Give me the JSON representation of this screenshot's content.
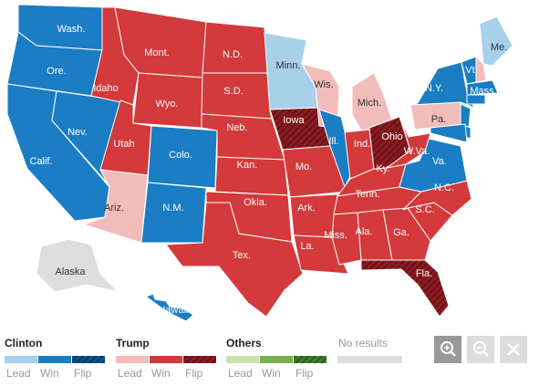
{
  "map": {
    "states": [
      {
        "label": "Wash.",
        "status": [
          "Clinton",
          "Win"
        ]
      },
      {
        "label": "Ore.",
        "status": [
          "Clinton",
          "Win"
        ]
      },
      {
        "label": "Calif.",
        "status": [
          "Clinton",
          "Win"
        ]
      },
      {
        "label": "Nev.",
        "status": [
          "Clinton",
          "Win"
        ]
      },
      {
        "label": "Idaho",
        "status": [
          "Trump",
          "Win"
        ]
      },
      {
        "label": "Mont.",
        "status": [
          "Trump",
          "Win"
        ]
      },
      {
        "label": "Wyo.",
        "status": [
          "Trump",
          "Win"
        ]
      },
      {
        "label": "Utah",
        "status": [
          "Trump",
          "Win"
        ]
      },
      {
        "label": "Ariz.",
        "status": [
          "Trump",
          "Lead"
        ]
      },
      {
        "label": "Colo.",
        "status": [
          "Clinton",
          "Win"
        ]
      },
      {
        "label": "N.M.",
        "status": [
          "Clinton",
          "Win"
        ]
      },
      {
        "label": "N.D.",
        "status": [
          "Trump",
          "Win"
        ]
      },
      {
        "label": "S.D.",
        "status": [
          "Trump",
          "Win"
        ]
      },
      {
        "label": "Neb.",
        "status": [
          "Trump",
          "Win"
        ]
      },
      {
        "label": "Kan.",
        "status": [
          "Trump",
          "Win"
        ]
      },
      {
        "label": "Okla.",
        "status": [
          "Trump",
          "Win"
        ]
      },
      {
        "label": "Tex.",
        "status": [
          "Trump",
          "Win"
        ]
      },
      {
        "label": "Minn.",
        "status": [
          "Clinton",
          "Lead"
        ]
      },
      {
        "label": "Iowa",
        "status": [
          "Trump",
          "Flip"
        ]
      },
      {
        "label": "Mo.",
        "status": [
          "Trump",
          "Win"
        ]
      },
      {
        "label": "Ark.",
        "status": [
          "Trump",
          "Win"
        ]
      },
      {
        "label": "La.",
        "status": [
          "Trump",
          "Win"
        ]
      },
      {
        "label": "Wis.",
        "status": [
          "Trump",
          "Lead"
        ]
      },
      {
        "label": "Ill.",
        "status": [
          "Clinton",
          "Win"
        ]
      },
      {
        "label": "Mich.",
        "status": [
          "Trump",
          "Lead"
        ]
      },
      {
        "label": "Ind.",
        "status": [
          "Trump",
          "Win"
        ]
      },
      {
        "label": "Ohio",
        "status": [
          "Trump",
          "Flip"
        ]
      },
      {
        "label": "Ky.",
        "status": [
          "Trump",
          "Win"
        ]
      },
      {
        "label": "Tenn.",
        "status": [
          "Trump",
          "Win"
        ]
      },
      {
        "label": "Miss.",
        "status": [
          "Trump",
          "Win"
        ]
      },
      {
        "label": "Ala.",
        "status": [
          "Trump",
          "Win"
        ]
      },
      {
        "label": "Ga.",
        "status": [
          "Trump",
          "Win"
        ]
      },
      {
        "label": "Fla.",
        "status": [
          "Trump",
          "Flip"
        ]
      },
      {
        "label": "S.C.",
        "status": [
          "Trump",
          "Win"
        ]
      },
      {
        "label": "N.C.",
        "status": [
          "Trump",
          "Win"
        ]
      },
      {
        "label": "Va.",
        "status": [
          "Clinton",
          "Win"
        ]
      },
      {
        "label": "W.Va.",
        "status": [
          "Trump",
          "Win"
        ]
      },
      {
        "label": "Pa.",
        "status": [
          "Trump",
          "Lead"
        ]
      },
      {
        "label": "N.Y.",
        "status": [
          "Clinton",
          "Win"
        ]
      },
      {
        "label": "Vt.",
        "status": [
          "Clinton",
          "Win"
        ]
      },
      {
        "label": "Mass.",
        "status": [
          "Clinton",
          "Win"
        ]
      },
      {
        "label": "Me.",
        "status": [
          "Clinton",
          "Lead"
        ]
      },
      {
        "label": null,
        "status": [
          "Trump",
          "Lead"
        ]
      },
      {
        "label": null,
        "status": [
          "Clinton",
          "Win"
        ]
      },
      {
        "label": null,
        "status": [
          "Clinton",
          "Win"
        ]
      },
      {
        "label": null,
        "status": [
          "Clinton",
          "Win"
        ]
      },
      {
        "label": null,
        "status": [
          "Clinton",
          "Win"
        ]
      },
      {
        "label": "Alaska",
        "status": [
          "No results"
        ]
      },
      {
        "label": "Hawaii",
        "status": [
          "Clinton",
          "Win"
        ]
      }
    ]
  },
  "legend": {
    "groups": [
      {
        "title": "Clinton",
        "items": [
          "Lead",
          "Win",
          "Flip"
        ],
        "colors": [
          "#a7d0ea",
          "#1b7dc4",
          "#0f4f85"
        ]
      },
      {
        "title": "Trump",
        "items": [
          "Lead",
          "Win",
          "Flip"
        ],
        "colors": [
          "#f2bcbb",
          "#d4393b",
          "#8b1a20"
        ]
      },
      {
        "title": "Others",
        "items": [
          "Lead",
          "Win",
          "Flip"
        ],
        "colors": [
          "#c9e2ad",
          "#7caf50",
          "#3f7a2c"
        ]
      }
    ],
    "no_results": {
      "title": "No results",
      "color": "#dedede"
    }
  }
}
